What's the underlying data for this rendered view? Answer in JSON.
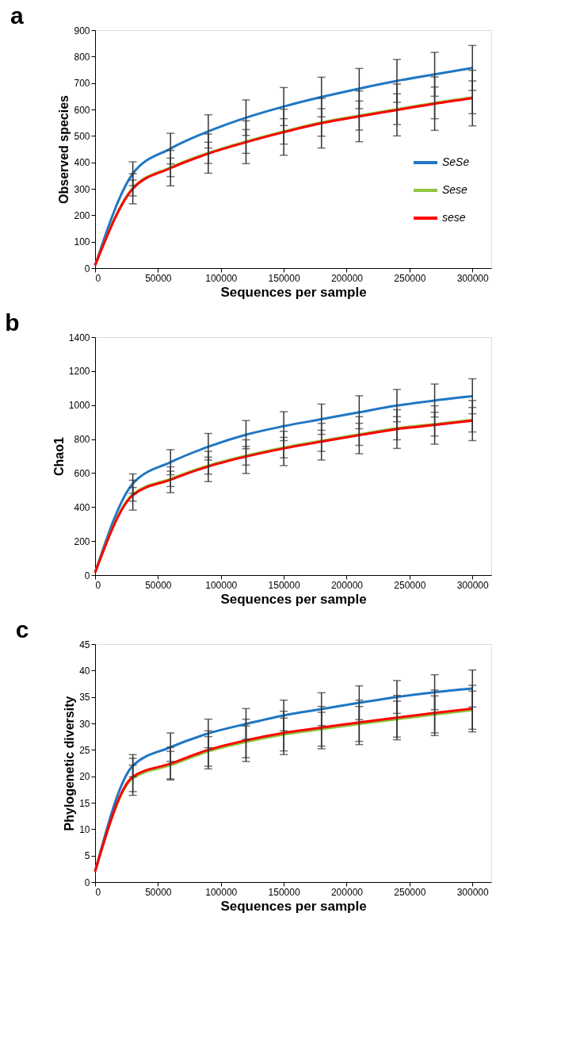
{
  "chart_data": [
    {
      "type": "line",
      "title": "a",
      "xlabel": "Sequences per sample",
      "ylabel": "Observed species",
      "x": [
        0,
        30000,
        60000,
        90000,
        120000,
        150000,
        180000,
        210000,
        240000,
        270000,
        300000
      ],
      "xlim": [
        0,
        315000
      ],
      "xticks": [
        0,
        50000,
        100000,
        150000,
        200000,
        250000,
        300000
      ],
      "ylim": [
        0,
        900
      ],
      "yticks": [
        0,
        100,
        200,
        300,
        400,
        500,
        600,
        700,
        800,
        900
      ],
      "grid": false,
      "legend": "right",
      "marker": "none",
      "line_style": "solid",
      "series": [
        {
          "name": "SeSe",
          "color": "#1f77c4",
          "values": [
            10,
            357,
            452,
            517,
            569,
            611,
            647,
            679,
            708,
            733,
            757
          ],
          "errors": [
            null,
            45,
            58,
            63,
            67,
            72,
            75,
            76,
            81,
            83,
            85
          ]
        },
        {
          "name": "Sese",
          "color": "#8cc63f",
          "values": [
            10,
            303,
            381,
            436,
            479,
            517,
            551,
            577,
            601,
            625,
            646
          ],
          "errors": [
            null,
            30,
            35,
            40,
            45,
            48,
            52,
            55,
            58,
            60,
            62
          ]
        },
        {
          "name": "sese",
          "color": "#ff0000",
          "values": [
            10,
            300,
            378,
            433,
            476,
            514,
            548,
            574,
            598,
            622,
            643
          ],
          "errors": [
            null,
            57,
            67,
            74,
            81,
            87,
            94,
            96,
            98,
            101,
            105
          ]
        }
      ]
    },
    {
      "type": "line",
      "title": "b",
      "xlabel": "Sequences per sample",
      "ylabel": "Chao1",
      "x": [
        0,
        30000,
        60000,
        90000,
        120000,
        150000,
        180000,
        210000,
        240000,
        270000,
        300000
      ],
      "xlim": [
        0,
        315000
      ],
      "xticks": [
        0,
        50000,
        100000,
        150000,
        200000,
        250000,
        300000
      ],
      "ylim": [
        0,
        1400
      ],
      "yticks": [
        0,
        200,
        400,
        600,
        800,
        1000,
        1200,
        1400
      ],
      "grid": false,
      "legend": "right",
      "marker": "none",
      "line_style": "solid",
      "series": [
        {
          "name": "SeSe",
          "color": "#1f77c4",
          "values": [
            15,
            538,
            664,
            755,
            826,
            876,
            917,
            958,
            997,
            1027,
            1052
          ],
          "errors": [
            null,
            57,
            74,
            78,
            83,
            85,
            89,
            97,
            95,
            97,
            103
          ]
        },
        {
          "name": "Sese",
          "color": "#8cc63f",
          "values": [
            15,
            475,
            566,
            644,
            702,
            750,
            790,
            828,
            864,
            888,
            914
          ],
          "errors": [
            null,
            40,
            45,
            50,
            55,
            60,
            62,
            65,
            68,
            70,
            72
          ]
        },
        {
          "name": "sese",
          "color": "#ff0000",
          "values": [
            15,
            470,
            561,
            639,
            697,
            745,
            785,
            823,
            859,
            883,
            909
          ],
          "errors": [
            null,
            88,
            76,
            89,
            99,
            101,
            108,
            109,
            114,
            113,
            118
          ]
        }
      ]
    },
    {
      "type": "line",
      "title": "c",
      "xlabel": "Sequences per sample",
      "ylabel": "Phylogenetic diversity",
      "x": [
        0,
        30000,
        60000,
        90000,
        120000,
        150000,
        180000,
        210000,
        240000,
        270000,
        300000
      ],
      "xlim": [
        0,
        315000
      ],
      "xticks": [
        0,
        50000,
        100000,
        150000,
        200000,
        250000,
        300000
      ],
      "ylim": [
        0,
        45
      ],
      "yticks": [
        0,
        5,
        10,
        15,
        20,
        25,
        30,
        35,
        40,
        45
      ],
      "grid": false,
      "legend": "right",
      "marker": "none",
      "line_style": "solid",
      "series": [
        {
          "name": "SeSe",
          "color": "#1f77c4",
          "values": [
            2,
            22.0,
            25.5,
            28.1,
            29.9,
            31.5,
            32.7,
            33.9,
            35.0,
            35.9,
            36.6
          ],
          "errors": [
            null,
            2.1,
            2.7,
            2.7,
            2.9,
            2.9,
            3.1,
            3.2,
            3.1,
            3.3,
            3.5
          ]
        },
        {
          "name": "Sese",
          "color": "#8cc63f",
          "values": [
            2,
            19.6,
            22.1,
            24.7,
            26.5,
            27.9,
            28.9,
            29.9,
            30.8,
            31.7,
            32.5
          ],
          "errors": [
            null,
            2.5,
            2.6,
            2.8,
            3.0,
            3.1,
            3.2,
            3.3,
            3.4,
            3.5,
            3.6
          ]
        },
        {
          "name": "sese",
          "color": "#ff0000",
          "values": [
            2,
            19.9,
            22.4,
            25.0,
            26.8,
            28.2,
            29.2,
            30.2,
            31.1,
            32.0,
            32.8
          ],
          "errors": [
            null,
            3.5,
            3.1,
            3.6,
            4.0,
            4.1,
            4.0,
            4.2,
            4.2,
            4.3,
            4.4
          ]
        }
      ]
    }
  ]
}
